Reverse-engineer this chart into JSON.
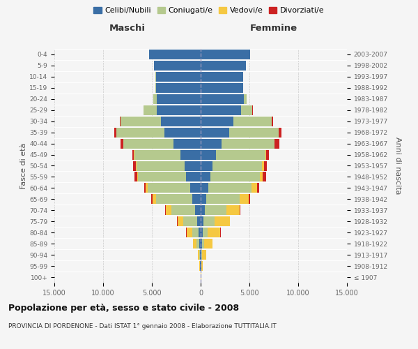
{
  "age_groups": [
    "100+",
    "95-99",
    "90-94",
    "85-89",
    "80-84",
    "75-79",
    "70-74",
    "65-69",
    "60-64",
    "55-59",
    "50-54",
    "45-49",
    "40-44",
    "35-39",
    "30-34",
    "25-29",
    "20-24",
    "15-19",
    "10-14",
    "5-9",
    "0-4"
  ],
  "birth_years": [
    "≤ 1907",
    "1908-1912",
    "1913-1917",
    "1918-1922",
    "1923-1927",
    "1928-1932",
    "1933-1937",
    "1938-1942",
    "1943-1947",
    "1948-1952",
    "1953-1957",
    "1958-1962",
    "1963-1967",
    "1968-1972",
    "1973-1977",
    "1978-1982",
    "1983-1987",
    "1988-1992",
    "1993-1997",
    "1998-2002",
    "2003-2007"
  ],
  "colors": {
    "celibi": "#3a6ea5",
    "coniugati": "#b5c98e",
    "vedovi": "#f5c842",
    "divorziati": "#cc2222"
  },
  "males": {
    "celibi": [
      20,
      55,
      85,
      130,
      200,
      340,
      540,
      880,
      1050,
      1480,
      1650,
      2050,
      2800,
      3750,
      4100,
      4500,
      4500,
      4600,
      4600,
      4800,
      5300
    ],
    "coniugati": [
      8,
      28,
      90,
      290,
      680,
      1450,
      2450,
      3700,
      4400,
      4950,
      4950,
      4750,
      5100,
      4900,
      4100,
      1350,
      380,
      45,
      8,
      8,
      8
    ],
    "vedovi": [
      4,
      38,
      115,
      340,
      580,
      580,
      580,
      380,
      180,
      90,
      70,
      25,
      8,
      4,
      4,
      4,
      4,
      4,
      4,
      4,
      4
    ],
    "divorziati": [
      0,
      0,
      4,
      10,
      18,
      45,
      95,
      140,
      190,
      240,
      290,
      190,
      290,
      190,
      90,
      18,
      8,
      4,
      0,
      0,
      0
    ]
  },
  "females": {
    "celibi": [
      20,
      60,
      100,
      150,
      200,
      290,
      440,
      580,
      780,
      980,
      1180,
      1550,
      2150,
      2950,
      3350,
      4150,
      4450,
      4350,
      4350,
      4650,
      5050
    ],
    "coniugati": [
      4,
      18,
      75,
      190,
      480,
      1150,
      2200,
      3400,
      4400,
      5100,
      5100,
      5100,
      5400,
      5050,
      3900,
      1150,
      280,
      28,
      4,
      4,
      4
    ],
    "vedovi": [
      28,
      140,
      380,
      880,
      1350,
      1550,
      1350,
      950,
      580,
      280,
      190,
      95,
      28,
      9,
      9,
      4,
      4,
      4,
      4,
      4,
      4
    ],
    "divorziati": [
      0,
      0,
      4,
      10,
      18,
      45,
      75,
      140,
      240,
      340,
      290,
      290,
      490,
      290,
      140,
      28,
      9,
      4,
      0,
      0,
      0
    ]
  },
  "xlim": 15000,
  "xtick_vals": [
    -15000,
    -10000,
    -5000,
    0,
    5000,
    10000,
    15000
  ],
  "xticklabels": [
    "15.000",
    "10.000",
    "5.000",
    "0",
    "5.000",
    "10.000",
    "15.000"
  ],
  "title": "Popolazione per età, sesso e stato civile - 2008",
  "subtitle": "PROVINCIA DI PORDENONE - Dati ISTAT 1° gennaio 2008 - Elaborazione TUTTITALIA.IT",
  "ylabel_left": "Fasce di età",
  "ylabel_right": "Anni di nascita",
  "label_maschi": "Maschi",
  "label_femmine": "Femmine",
  "legend_labels": [
    "Celibi/Nubili",
    "Coniugati/e",
    "Vedovi/e",
    "Divorziati/e"
  ],
  "bg_color": "#f5f5f5",
  "plot_bg": "#f5f5f5"
}
